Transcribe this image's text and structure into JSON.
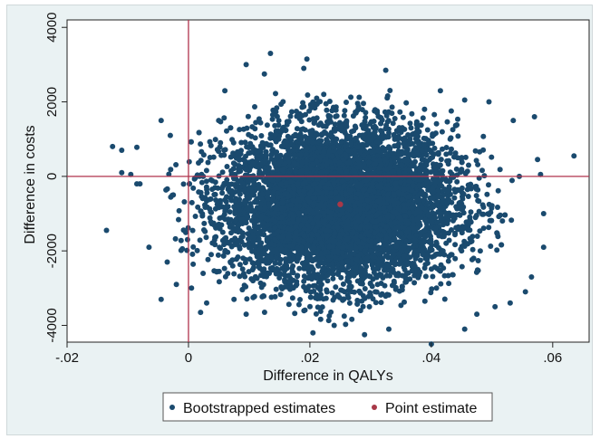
{
  "chart_data": {
    "type": "scatter",
    "title": "",
    "xlabel": "Difference in QALYs",
    "ylabel": "Difference in costs",
    "xlim": [
      -0.02,
      0.066
    ],
    "ylim": [
      -4450,
      4200
    ],
    "x_ticks": [
      -0.02,
      0,
      0.02,
      0.04,
      0.06
    ],
    "x_tick_labels": [
      "-.02",
      "0",
      ".02",
      ".04",
      ".06"
    ],
    "y_ticks": [
      -4000,
      -2000,
      0,
      2000,
      4000
    ],
    "y_tick_labels": [
      "-4000",
      "-2000",
      "0",
      "2000",
      "4000"
    ],
    "reference_lines": {
      "x": 0,
      "y": 0,
      "color": "#b0334c"
    },
    "grid": false,
    "legend_position": "bottom",
    "series": [
      {
        "name": "Bootstrapped estimates",
        "color": "#1a4a6e",
        "cloud": {
          "center_x": 0.025,
          "center_y": -750,
          "sd_x": 0.0095,
          "sd_y": 1050
        },
        "outlier_points": [
          [
            -0.0135,
            -1450
          ],
          [
            -0.0125,
            800
          ],
          [
            -0.011,
            100
          ],
          [
            -0.011,
            700
          ],
          [
            -0.0095,
            50
          ],
          [
            -0.0085,
            780
          ],
          [
            -0.0085,
            -200
          ],
          [
            -0.008,
            -200
          ],
          [
            -0.0065,
            -1900
          ],
          [
            -0.0045,
            1500
          ],
          [
            -0.0045,
            -3300
          ],
          [
            -0.003,
            1100
          ],
          [
            0.002,
            -3650
          ],
          [
            0.003,
            -3400
          ],
          [
            0.0095,
            3000
          ],
          [
            0.0095,
            -3700
          ],
          [
            0.0125,
            2750
          ],
          [
            0.0135,
            3300
          ],
          [
            0.019,
            2900
          ],
          [
            0.0195,
            3150
          ],
          [
            0.0205,
            -4200
          ],
          [
            0.024,
            -4000
          ],
          [
            0.029,
            -4250
          ],
          [
            0.0325,
            2850
          ],
          [
            0.033,
            -4100
          ],
          [
            0.04,
            -4500
          ],
          [
            0.0455,
            -4100
          ],
          [
            0.0495,
            2000
          ],
          [
            0.053,
            -3400
          ],
          [
            0.0535,
            1500
          ],
          [
            0.0545,
            0
          ],
          [
            0.0555,
            -3100
          ],
          [
            0.057,
            1600
          ],
          [
            0.058,
            50
          ],
          [
            0.0585,
            -1000
          ],
          [
            0.0635,
            550
          ],
          [
            0.0415,
            2300
          ],
          [
            0.0455,
            2050
          ],
          [
            0.0505,
            -3500
          ],
          [
            0.006,
            2300
          ],
          [
            -0.002,
            -2900
          ],
          [
            0.0005,
            -3000
          ],
          [
            0.0585,
            -1900
          ],
          [
            0.0565,
            -2700
          ],
          [
            -0.0035,
            -2300
          ],
          [
            0.0575,
            450
          ],
          [
            0.0075,
            -3300
          ],
          [
            0.0475,
            -3700
          ]
        ]
      },
      {
        "name": "Point estimate",
        "color": "#a83848",
        "points": [
          [
            0.025,
            -750
          ]
        ]
      }
    ]
  }
}
